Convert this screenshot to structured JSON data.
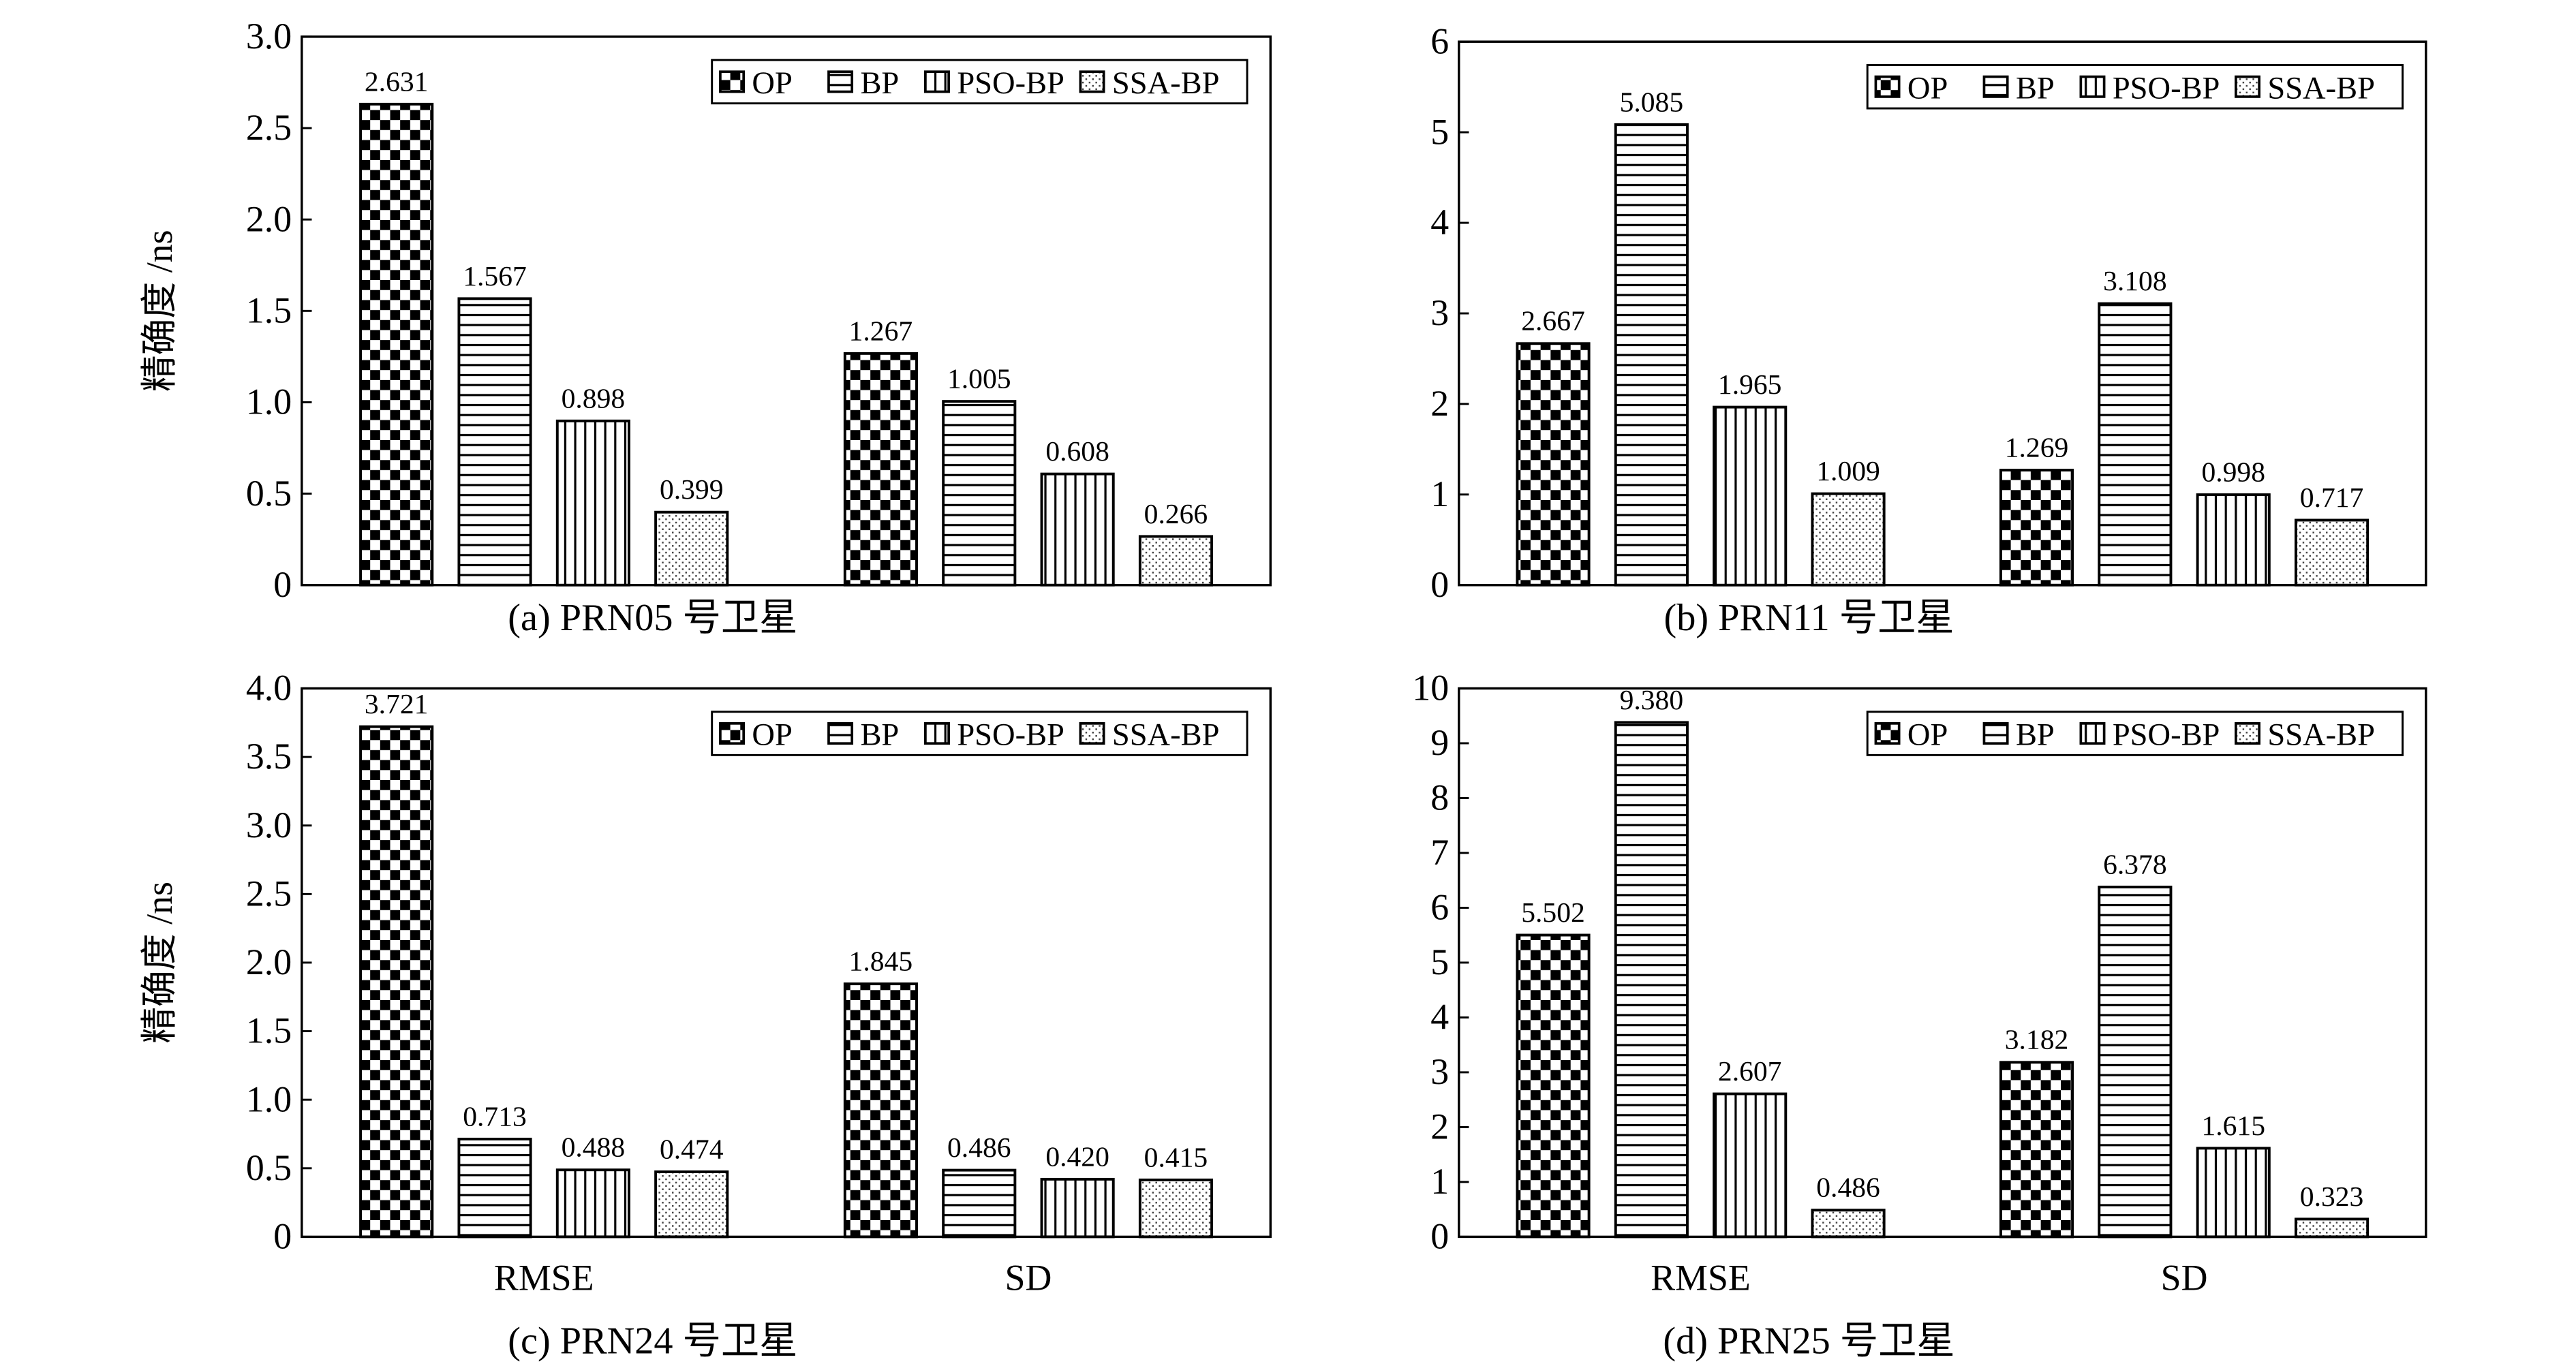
{
  "chart_data": [
    {
      "type": "bar",
      "title": "(a) PRN05 号卫星",
      "ylabel": "精确度 /ns",
      "categories": [
        null,
        null
      ],
      "series": [
        {
          "name": "OP",
          "color": "#000000",
          "pattern": "checker",
          "values": [
            2.631,
            1.267
          ],
          "value_labels": [
            "2.631",
            "1.267"
          ]
        },
        {
          "name": "BP",
          "color": "#000000",
          "pattern": "hlines",
          "values": [
            1.567,
            1.005
          ],
          "value_labels": [
            "1.567",
            "1.005"
          ]
        },
        {
          "name": "PSO-BP",
          "color": "#000000",
          "pattern": "vlines",
          "values": [
            0.898,
            0.608
          ],
          "value_labels": [
            "0.898",
            "0.608"
          ]
        },
        {
          "name": "SSA-BP",
          "color": "#000000",
          "pattern": "dots",
          "values": [
            0.399,
            0.266
          ],
          "value_labels": [
            "0.399",
            "0.266"
          ]
        }
      ],
      "ylim": [
        0,
        3
      ],
      "yticks": [
        0,
        0.5,
        {
          "value": 1,
          "label": "1.0"
        },
        1.5,
        {
          "value": 2,
          "label": "2.0"
        },
        2.5,
        {
          "value": 3,
          "label": "3.0"
        }
      ],
      "legend": "upper right",
      "grid": false
    },
    {
      "type": "bar",
      "title": "(b) PRN11 号卫星",
      "categories": [
        null,
        null
      ],
      "series": [
        {
          "name": "OP",
          "color": "#000000",
          "pattern": "checker",
          "values": [
            2.667,
            1.269
          ],
          "value_labels": [
            "2.667",
            "1.269"
          ]
        },
        {
          "name": "BP",
          "color": "#000000",
          "pattern": "hlines",
          "values": [
            5.085,
            3.108
          ],
          "value_labels": [
            "5.085",
            "3.108"
          ]
        },
        {
          "name": "PSO-BP",
          "color": "#000000",
          "pattern": "vlines",
          "values": [
            1.965,
            0.998
          ],
          "value_labels": [
            "1.965",
            "0.998"
          ]
        },
        {
          "name": "SSA-BP",
          "color": "#000000",
          "pattern": "dots",
          "values": [
            1.009,
            0.717
          ],
          "value_labels": [
            "1.009",
            "0.717"
          ]
        }
      ],
      "ylim": [
        0,
        6
      ],
      "yticks": [
        0,
        1,
        2,
        3,
        4,
        5,
        6
      ],
      "legend": "upper right",
      "grid": false
    },
    {
      "type": "bar",
      "title": "(c) PRN24 号卫星",
      "ylabel": "精确度 /ns",
      "categories": [
        "RMSE",
        "SD"
      ],
      "series": [
        {
          "name": "OP",
          "color": "#000000",
          "pattern": "checker",
          "values": [
            3.721,
            1.845
          ],
          "value_labels": [
            "3.721",
            "1.845"
          ]
        },
        {
          "name": "BP",
          "color": "#000000",
          "pattern": "hlines",
          "values": [
            0.713,
            0.486
          ],
          "value_labels": [
            "0.713",
            "0.486"
          ]
        },
        {
          "name": "PSO-BP",
          "color": "#000000",
          "pattern": "vlines",
          "values": [
            0.488,
            0.42
          ],
          "value_labels": [
            "0.488",
            "0.420"
          ]
        },
        {
          "name": "SSA-BP",
          "color": "#000000",
          "pattern": "dots",
          "values": [
            0.474,
            0.415
          ],
          "value_labels": [
            "0.474",
            "0.415"
          ]
        }
      ],
      "ylim": [
        0,
        4
      ],
      "yticks": [
        0,
        0.5,
        {
          "value": 1,
          "label": "1.0"
        },
        1.5,
        {
          "value": 2,
          "label": "2.0"
        },
        2.5,
        {
          "value": 3,
          "label": "3.0"
        },
        3.5,
        {
          "value": 4,
          "label": "4.0"
        }
      ],
      "legend": "upper right",
      "grid": false
    },
    {
      "type": "bar",
      "title": "(d) PRN25 号卫星",
      "categories": [
        "RMSE",
        "SD"
      ],
      "series": [
        {
          "name": "OP",
          "color": "#000000",
          "pattern": "checker",
          "values": [
            5.502,
            3.182
          ],
          "value_labels": [
            "5.502",
            "3.182"
          ]
        },
        {
          "name": "BP",
          "color": "#000000",
          "pattern": "hlines",
          "values": [
            9.38,
            6.378
          ],
          "value_labels": [
            "9.380",
            "6.378"
          ]
        },
        {
          "name": "PSO-BP",
          "color": "#000000",
          "pattern": "vlines",
          "values": [
            2.607,
            1.615
          ],
          "value_labels": [
            "2.607",
            "1.615"
          ]
        },
        {
          "name": "SSA-BP",
          "color": "#000000",
          "pattern": "dots",
          "values": [
            0.486,
            0.323
          ],
          "value_labels": [
            "0.486",
            "0.323"
          ]
        }
      ],
      "ylim": [
        0,
        10
      ],
      "yticks": [
        0,
        1,
        2,
        3,
        4,
        5,
        6,
        7,
        8,
        9,
        10
      ],
      "legend": "upper right",
      "grid": false
    }
  ]
}
